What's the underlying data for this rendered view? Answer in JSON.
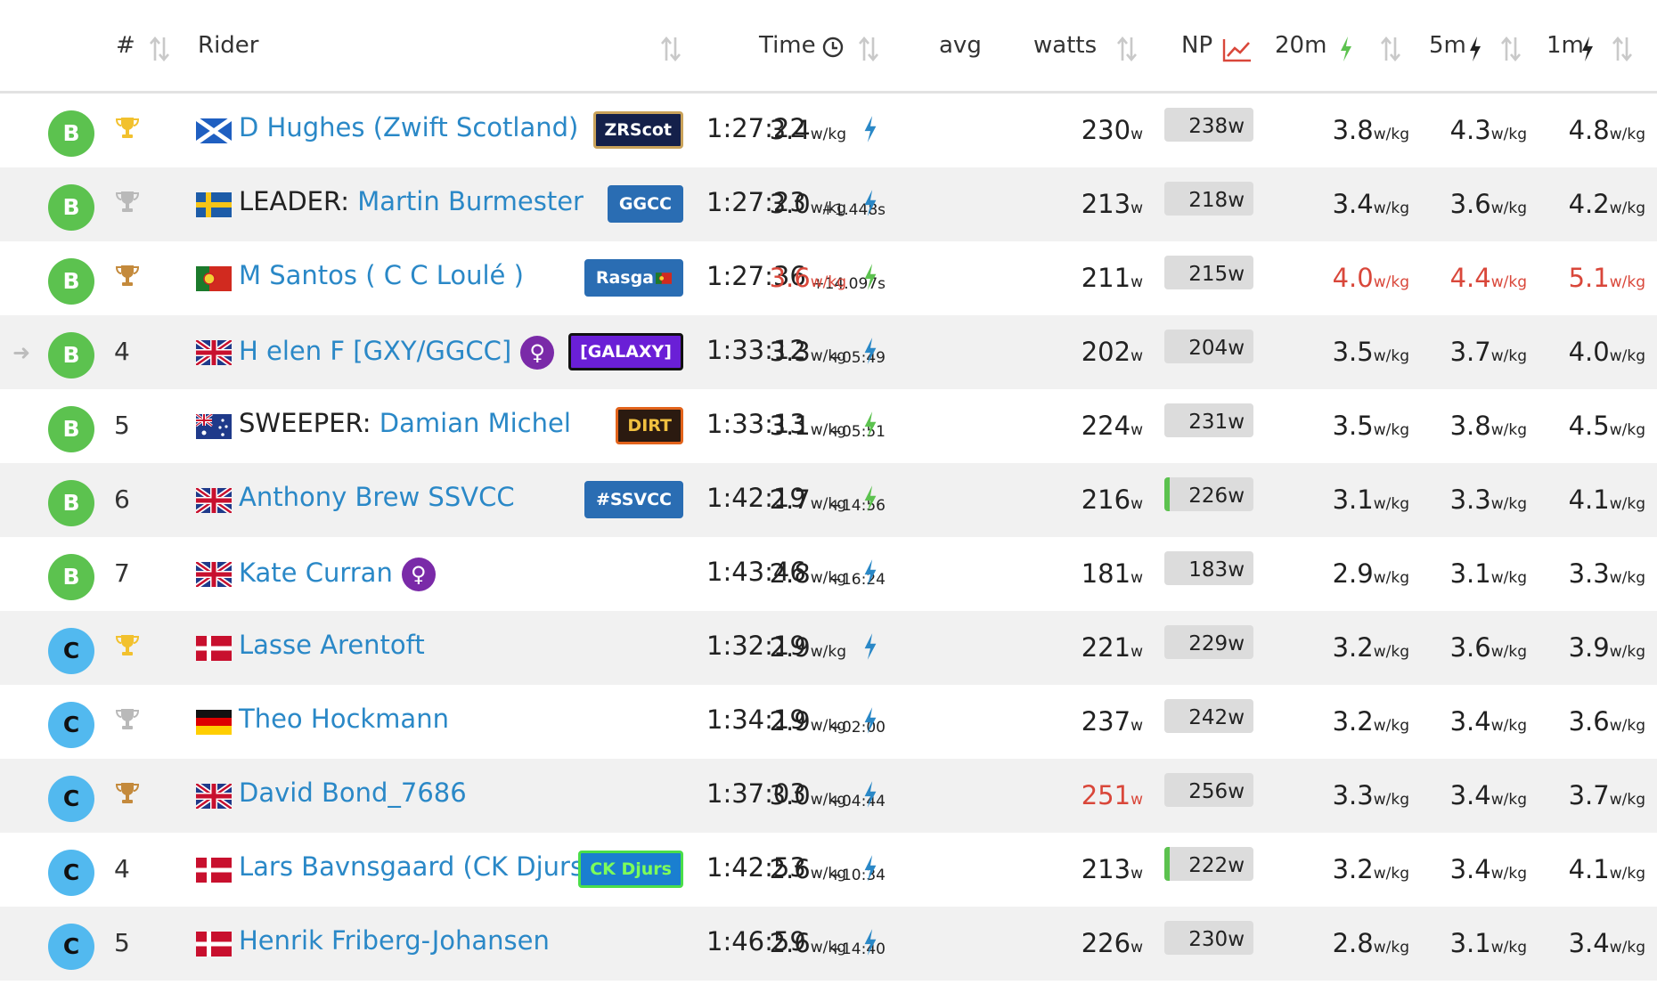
{
  "header": {
    "col_num": "#",
    "col_rider": "Rider",
    "col_time": "Time",
    "col_avg": "avg",
    "col_watts": "watts",
    "col_np": "NP",
    "col_20m": "20m",
    "col_5m": "5m",
    "col_1m": "1m",
    "icons": {
      "time": "clock-icon",
      "np": "chart-trend-icon",
      "20m": "bolt-icon",
      "5m": "bolt-icon",
      "1m": "bolt-icon",
      "sort": "sort-arrows-icon"
    }
  },
  "units": {
    "wkg": "w/kg",
    "w": "w"
  },
  "colors": {
    "cat_b": "#5cc24f",
    "cat_c": "#52b9ef",
    "link": "#2a88c7",
    "highlight": "#d9473a",
    "bolt_blue": "#2a88c7",
    "bolt_green": "#5cc24f",
    "gold": "#f2c12e",
    "silver": "#b9b9b9",
    "bronze": "#c48a3c"
  },
  "rows": [
    {
      "cat": "B",
      "pos": "",
      "trophy": "gold",
      "arrow": "",
      "flag": "scotland",
      "prefix": "",
      "name": "D Hughes (Zwift Scotland)",
      "female": "",
      "team": "ZRScot",
      "time": "1:27:22",
      "gap": "",
      "avg": "3.4",
      "avg_bolt": "blue",
      "watts": "230",
      "np": "238",
      "np_fill": 0,
      "w20": "3.8",
      "w5": "4.3",
      "w1": "4.8"
    },
    {
      "cat": "B",
      "pos": "",
      "trophy": "silver",
      "arrow": "",
      "flag": "sweden",
      "prefix": "LEADER: ",
      "name": "Martin Burmester",
      "female": "",
      "team": "GGCC",
      "time": "1:27:23",
      "gap": "+1.448s",
      "avg": "3.0",
      "avg_bolt": "blue",
      "watts": "213",
      "np": "218",
      "np_fill": 0,
      "w20": "3.4",
      "w5": "3.6",
      "w1": "4.2"
    },
    {
      "cat": "B",
      "pos": "",
      "trophy": "bronze",
      "arrow": "",
      "flag": "portugal",
      "prefix": "",
      "name": "M Santos ( C C Loulé )",
      "female": "",
      "team": "Rasga",
      "time": "1:27:36",
      "gap": "+14.097s",
      "avg": "3.6",
      "avg_bolt": "green",
      "watts": "211",
      "np": "215",
      "np_fill": 0,
      "w20": "4.0",
      "w5": "4.4",
      "w1": "5.1"
    },
    {
      "cat": "B",
      "pos": "4",
      "trophy": "",
      "arrow": "➜",
      "flag": "uk",
      "prefix": "",
      "name": "H elen F [GXY/GGCC]",
      "female": "♀",
      "team": "[GALAXY]",
      "time": "1:33:12",
      "gap": "+05:49",
      "avg": "3.3",
      "avg_bolt": "blue",
      "watts": "202",
      "np": "204",
      "np_fill": 0,
      "w20": "3.5",
      "w5": "3.7",
      "w1": "4.0"
    },
    {
      "cat": "B",
      "pos": "5",
      "trophy": "",
      "arrow": "",
      "flag": "australia",
      "prefix": "SWEEPER: ",
      "name": "Damian Michel",
      "female": "",
      "team": "DIRT",
      "time": "1:33:13",
      "gap": "+05:51",
      "avg": "3.1",
      "avg_bolt": "green",
      "watts": "224",
      "np": "231",
      "np_fill": 0,
      "w20": "3.5",
      "w5": "3.8",
      "w1": "4.5"
    },
    {
      "cat": "B",
      "pos": "6",
      "trophy": "",
      "arrow": "",
      "flag": "uk",
      "prefix": "",
      "name": "Anthony Brew SSVCC",
      "female": "",
      "team": "#SSVCC",
      "time": "1:42:19",
      "gap": "+14:56",
      "avg": "2.7",
      "avg_bolt": "green",
      "watts": "216",
      "np": "226",
      "np_fill": 0.1,
      "w20": "3.1",
      "w5": "3.3",
      "w1": "4.1"
    },
    {
      "cat": "B",
      "pos": "7",
      "trophy": "",
      "arrow": "",
      "flag": "uk",
      "prefix": "",
      "name": "Kate Curran",
      "female": "♀",
      "team": "",
      "time": "1:43:46",
      "gap": "+16:24",
      "avg": "2.8",
      "avg_bolt": "blue",
      "watts": "181",
      "np": "183",
      "np_fill": 0,
      "w20": "2.9",
      "w5": "3.1",
      "w1": "3.3"
    },
    {
      "cat": "C",
      "pos": "",
      "trophy": "gold",
      "arrow": "",
      "flag": "denmark",
      "prefix": "",
      "name": "Lasse Arentoft",
      "female": "",
      "team": "",
      "time": "1:32:19",
      "gap": "",
      "avg": "2.9",
      "avg_bolt": "blue",
      "watts": "221",
      "np": "229",
      "np_fill": 0,
      "w20": "3.2",
      "w5": "3.6",
      "w1": "3.9"
    },
    {
      "cat": "C",
      "pos": "",
      "trophy": "silver",
      "arrow": "",
      "flag": "germany",
      "prefix": "",
      "name": "Theo Hockmann",
      "female": "",
      "team": "",
      "time": "1:34:19",
      "gap": "+02:00",
      "avg": "2.9",
      "avg_bolt": "blue",
      "watts": "237",
      "np": "242",
      "np_fill": 0,
      "w20": "3.2",
      "w5": "3.4",
      "w1": "3.6"
    },
    {
      "cat": "C",
      "pos": "",
      "trophy": "bronze",
      "arrow": "",
      "flag": "uk",
      "prefix": "",
      "name": "David Bond_7686",
      "female": "",
      "team": "",
      "time": "1:37:03",
      "gap": "+04:44",
      "avg": "3.0",
      "avg_bolt": "blue",
      "watts": "251",
      "np": "256",
      "np_fill": 0,
      "w20": "3.3",
      "w5": "3.4",
      "w1": "3.7"
    },
    {
      "cat": "C",
      "pos": "4",
      "trophy": "",
      "arrow": "",
      "flag": "denmark",
      "prefix": "",
      "name": "Lars Bavnsgaard (CK Djurs)",
      "female": "",
      "team": "CK Djurs",
      "time": "1:42:53",
      "gap": "+10:34",
      "avg": "2.6",
      "avg_bolt": "blue",
      "watts": "213",
      "np": "222",
      "np_fill": 0.1,
      "w20": "3.2",
      "w5": "3.4",
      "w1": "4.1"
    },
    {
      "cat": "C",
      "pos": "5",
      "trophy": "",
      "arrow": "",
      "flag": "denmark",
      "prefix": "",
      "name": "Henrik Friberg-Johansen",
      "female": "",
      "team": "",
      "time": "1:46:59",
      "gap": "+14:40",
      "avg": "2.6",
      "avg_bolt": "blue",
      "watts": "226",
      "np": "230",
      "np_fill": 0,
      "w20": "2.8",
      "w5": "3.1",
      "w1": "3.4"
    }
  ],
  "highlights": {
    "2": [
      "avg",
      "w20",
      "w5",
      "w1"
    ],
    "9": [
      "watts"
    ]
  },
  "team_styles": {
    "ZRScot": {
      "bg": "#14204a",
      "fg": "#ffffff",
      "border": "#c9a25a"
    },
    "GGCC": {
      "bg": "#2a6db3",
      "fg": "#ffffff",
      "border": "#2a6db3"
    },
    "Rasga": {
      "bg": "#2a6db3",
      "fg": "#ffffff",
      "border": "#2a6db3"
    },
    "[GALAXY]": {
      "bg": "#6a1fd6",
      "fg": "#ffffff",
      "border": "#111111"
    },
    "DIRT": {
      "bg": "#2b1a10",
      "fg": "#f0c040",
      "border": "#e2631b"
    },
    "#SSVCC": {
      "bg": "#2a6db3",
      "fg": "#ffffff",
      "border": "#2a6db3"
    },
    "CK Djurs": {
      "bg": "#1a7fd0",
      "fg": "#7dff5a",
      "border": "#4ade4a"
    }
  }
}
